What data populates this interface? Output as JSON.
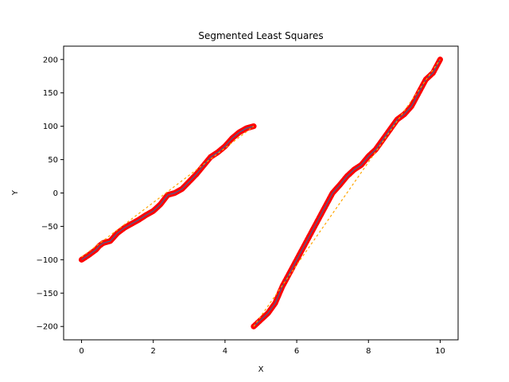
{
  "chart_data": {
    "type": "scatter",
    "title": "Segmented Least Squares",
    "xlabel": "X",
    "ylabel": "Y",
    "xlim": [
      -0.5,
      10.5
    ],
    "ylim": [
      -220,
      220
    ],
    "x_ticks": [
      0,
      2,
      4,
      6,
      8,
      10
    ],
    "y_ticks": [
      -200,
      -150,
      -100,
      -50,
      0,
      50,
      100,
      150,
      200
    ],
    "grid": false,
    "legend": "none",
    "series": [
      {
        "kind": "points",
        "color": "#ff0000",
        "x": [
          0.0,
          0.2,
          0.4,
          0.5,
          0.6,
          0.8,
          1.0,
          1.2,
          1.4,
          1.6,
          1.8,
          2.0,
          2.2,
          2.4,
          2.6,
          2.8,
          3.0,
          3.2,
          3.4,
          3.6,
          3.8,
          4.0,
          4.2,
          4.4,
          4.6,
          4.8
        ],
        "y": [
          -100,
          -93,
          -85,
          -79,
          -75,
          -72,
          -60,
          -52,
          -46,
          -40,
          -33,
          -27,
          -17,
          -3,
          0,
          6,
          17,
          28,
          41,
          54,
          61,
          70,
          82,
          91,
          97,
          100
        ]
      },
      {
        "kind": "points",
        "color": "#ff0000",
        "x": [
          4.8,
          5.0,
          5.2,
          5.4,
          5.6,
          5.8,
          6.0,
          6.2,
          6.4,
          6.6,
          6.8,
          7.0,
          7.2,
          7.4,
          7.6,
          7.8,
          8.0,
          8.2,
          8.4,
          8.6,
          8.8,
          9.0,
          9.2,
          9.4,
          9.6,
          9.8,
          10.0
        ],
        "y": [
          -200,
          -190,
          -180,
          -165,
          -140,
          -120,
          -100,
          -80,
          -60,
          -40,
          -20,
          0,
          12,
          25,
          35,
          42,
          55,
          65,
          80,
          95,
          110,
          118,
          130,
          150,
          170,
          180,
          200
        ]
      },
      {
        "kind": "fit-line",
        "color": "#ffa500",
        "x": [
          0.0,
          4.8
        ],
        "y": [
          -96,
          100
        ]
      },
      {
        "kind": "fit-line",
        "color": "#ffa500",
        "x": [
          4.8,
          10.0
        ],
        "y": [
          -200,
          200
        ]
      }
    ]
  }
}
